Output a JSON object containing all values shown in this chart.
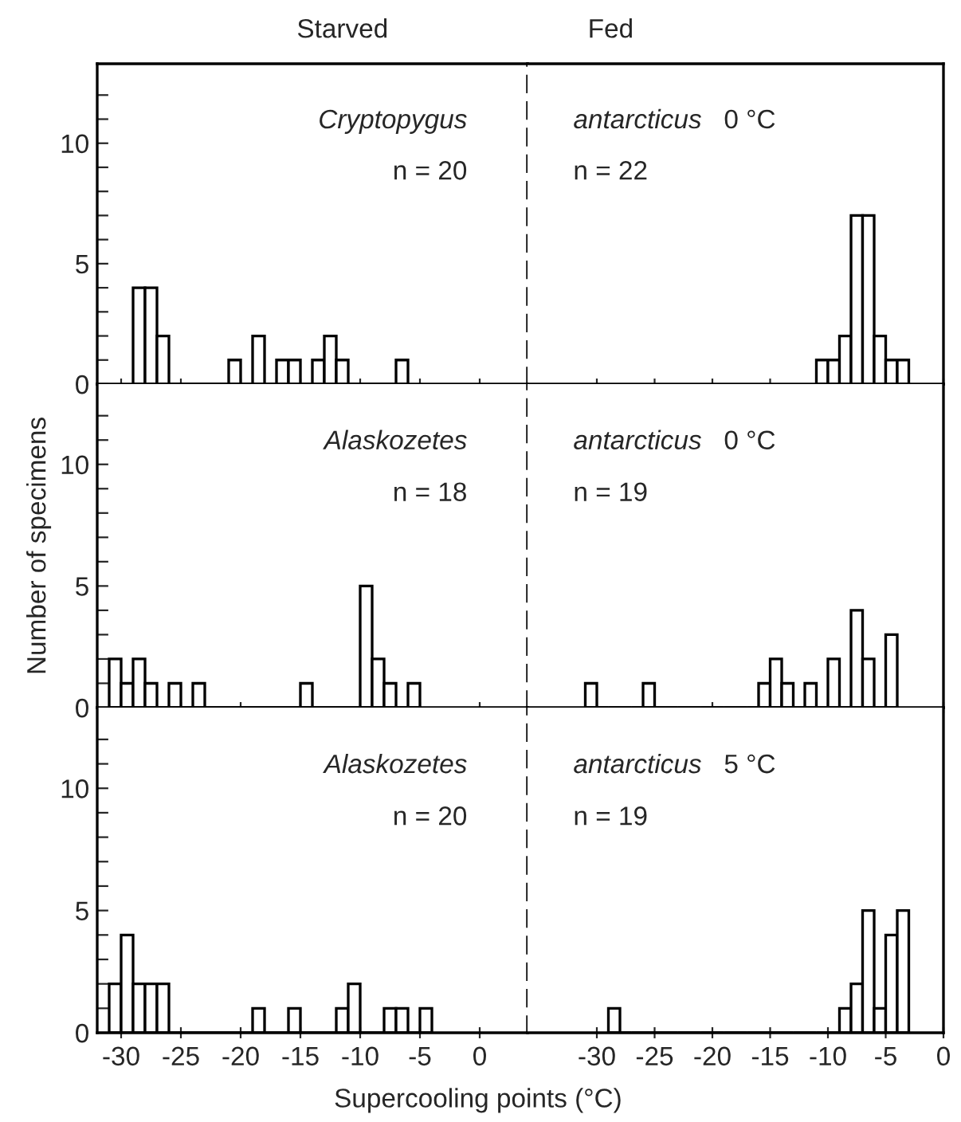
{
  "chart_data": [
    {
      "type": "histogram",
      "title": "Starved",
      "annotations": [
        "Cryptopygus",
        "n = 20"
      ],
      "color": "#ffffff",
      "bins": [
        -29,
        -28,
        -27,
        -26,
        -25,
        -24,
        -23,
        -22,
        -21,
        -20,
        -19,
        -18,
        -17,
        -16,
        -15,
        -14,
        -13,
        -12,
        -11,
        -10,
        -9,
        -8,
        -7,
        -6
      ],
      "values": [
        4,
        4,
        2,
        0,
        0,
        0,
        0,
        0,
        1,
        0,
        2,
        0,
        1,
        1,
        0,
        1,
        2,
        1,
        0,
        0,
        0,
        0,
        1
      ],
      "xlim": [
        -32,
        4
      ],
      "xticks": [
        -30,
        -25,
        -20,
        -15,
        -10,
        -5,
        0
      ],
      "ylim": [
        0,
        13.3
      ],
      "yticks": [
        0,
        {
          "value": 1,
          "label": null
        },
        {
          "value": 2,
          "label": null
        },
        {
          "value": 3,
          "label": null
        },
        {
          "value": 4,
          "label": null
        },
        5,
        {
          "value": 6,
          "label": null
        },
        {
          "value": 7,
          "label": null
        },
        {
          "value": 8,
          "label": null
        },
        {
          "value": 9,
          "label": null
        },
        10,
        {
          "value": 11,
          "label": null
        },
        {
          "value": 12,
          "label": null
        }
      ],
      "tick_labels": "y",
      "grid": false
    },
    {
      "type": "histogram",
      "title": "Fed",
      "annotations": [
        "antarcticus",
        "0 °C",
        "n = 22"
      ],
      "color": "#ffffff",
      "bins": [
        -11,
        -10,
        -9,
        -8,
        -7,
        -6,
        -5,
        -4,
        -3
      ],
      "values": [
        1,
        1,
        2,
        7,
        7,
        2,
        1,
        1
      ],
      "xlim": [
        -36,
        0
      ],
      "xticks": [
        -30,
        -25,
        -20,
        -15,
        -10,
        -5,
        0
      ],
      "ylim": [
        0,
        13.3
      ],
      "tick_labels": false,
      "grid": false
    },
    {
      "type": "histogram",
      "ylabel": "Number of specimens",
      "annotations": [
        "Alaskozetes",
        "n = 18"
      ],
      "color": "#ffffff",
      "bins": [
        -31,
        -30,
        -29,
        -28,
        -27,
        -26,
        -25,
        -24,
        -23,
        -22,
        -21,
        -20,
        -19,
        -18,
        -17,
        -16,
        -15,
        -14,
        -13,
        -12,
        -11,
        -10,
        -9,
        -8,
        -7,
        -6,
        -5
      ],
      "values": [
        2,
        1,
        2,
        1,
        0,
        1,
        0,
        1,
        0,
        0,
        0,
        0,
        0,
        0,
        0,
        0,
        1,
        0,
        0,
        0,
        0,
        5,
        2,
        1,
        0,
        1
      ],
      "xlim": [
        -32,
        4
      ],
      "xticks": [
        -30,
        -25,
        -20,
        -15,
        -10,
        -5,
        0
      ],
      "ylim": [
        0,
        13.3
      ],
      "yticks": [
        0,
        {
          "value": 1,
          "label": null
        },
        {
          "value": 2,
          "label": null
        },
        {
          "value": 3,
          "label": null
        },
        {
          "value": 4,
          "label": null
        },
        5,
        {
          "value": 6,
          "label": null
        },
        {
          "value": 7,
          "label": null
        },
        {
          "value": 8,
          "label": null
        },
        {
          "value": 9,
          "label": null
        },
        10,
        {
          "value": 11,
          "label": null
        },
        {
          "value": 12,
          "label": null
        }
      ],
      "tick_labels": "y",
      "grid": false
    },
    {
      "type": "histogram",
      "annotations": [
        "antarcticus",
        "0 °C",
        "n = 19"
      ],
      "color": "#ffffff",
      "bins": [
        -31,
        -30,
        -29,
        -28,
        -27,
        -26,
        -25,
        -24,
        -23,
        -22,
        -21,
        -20,
        -19,
        -18,
        -17,
        -16,
        -15,
        -14,
        -13,
        -12,
        -11,
        -10,
        -9,
        -8,
        -7,
        -6,
        -5,
        -4
      ],
      "values": [
        1,
        0,
        0,
        0,
        0,
        1,
        0,
        0,
        0,
        0,
        0,
        0,
        0,
        0,
        0,
        1,
        2,
        1,
        0,
        1,
        0,
        2,
        0,
        4,
        2,
        0,
        3
      ],
      "xlim": [
        -36,
        0
      ],
      "xticks": [
        -30,
        -25,
        -20,
        -15,
        -10,
        -5,
        0
      ],
      "ylim": [
        0,
        13.3
      ],
      "tick_labels": false,
      "grid": false
    },
    {
      "type": "histogram",
      "xlabel": "Supercooling points (°C)",
      "annotations": [
        "Alaskozetes",
        "n = 20"
      ],
      "color": "#ffffff",
      "bins": [
        -31,
        -30,
        -29,
        -28,
        -27,
        -26,
        -25,
        -24,
        -23,
        -22,
        -21,
        -20,
        -19,
        -18,
        -17,
        -16,
        -15,
        -14,
        -13,
        -12,
        -11,
        -10,
        -9,
        -8,
        -7,
        -6,
        -5,
        -4
      ],
      "values": [
        2,
        4,
        2,
        2,
        2,
        0,
        0,
        0,
        0,
        0,
        0,
        0,
        1,
        0,
        0,
        1,
        0,
        0,
        0,
        1,
        2,
        0,
        0,
        1,
        1,
        0,
        1
      ],
      "xlim": [
        -32,
        4
      ],
      "xticks": [
        -30,
        -25,
        -20,
        -15,
        -10,
        -5,
        0
      ],
      "ylim": [
        0,
        13.3
      ],
      "yticks": [
        0,
        {
          "value": 1,
          "label": null
        },
        {
          "value": 2,
          "label": null
        },
        {
          "value": 3,
          "label": null
        },
        {
          "value": 4,
          "label": null
        },
        5,
        {
          "value": 6,
          "label": null
        },
        {
          "value": 7,
          "label": null
        },
        {
          "value": 8,
          "label": null
        },
        {
          "value": 9,
          "label": null
        },
        10,
        {
          "value": 11,
          "label": null
        },
        {
          "value": 12,
          "label": null
        }
      ],
      "grid": false
    },
    {
      "type": "histogram",
      "annotations": [
        "antarcticus",
        "5 °C",
        "n = 19"
      ],
      "color": "#ffffff",
      "bins": [
        -29,
        -28,
        -27,
        -26,
        -25,
        -24,
        -23,
        -22,
        -21,
        -20,
        -19,
        -18,
        -17,
        -16,
        -15,
        -14,
        -13,
        -12,
        -11,
        -10,
        -9,
        -8,
        -7,
        -6,
        -5,
        -4,
        -3
      ],
      "values": [
        1,
        0,
        0,
        0,
        0,
        0,
        0,
        0,
        0,
        0,
        0,
        0,
        0,
        0,
        0,
        0,
        0,
        0,
        0,
        0,
        1,
        2,
        5,
        1,
        4,
        5
      ],
      "xlim": [
        -36,
        0
      ],
      "xticks": [
        -30,
        -25,
        -20,
        -15,
        -10,
        -5,
        0
      ],
      "ylim": [
        0,
        13.3
      ],
      "tick_labels": "x",
      "grid": false
    }
  ]
}
